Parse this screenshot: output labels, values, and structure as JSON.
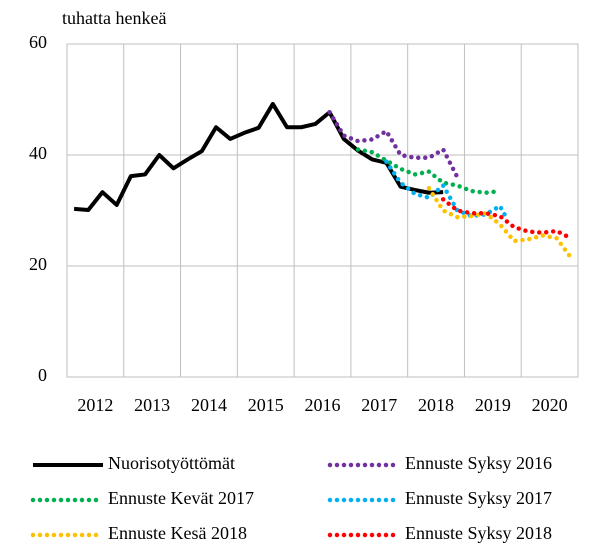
{
  "chart_data": {
    "type": "line",
    "y_label": "tuhatta henkeä",
    "xlim": [
      2012,
      2021
    ],
    "xticks": [
      2012,
      2013,
      2014,
      2015,
      2016,
      2017,
      2018,
      2019,
      2020
    ],
    "ylim": [
      0,
      60
    ],
    "yticks": [
      0,
      20,
      40,
      60
    ],
    "grid": true,
    "legend": "bottom",
    "series": [
      {
        "name": "Nuorisotyöttömät",
        "color": "#000000",
        "style": "solid",
        "x": [
          2012.125,
          2012.375,
          2012.625,
          2012.875,
          2013.125,
          2013.375,
          2013.625,
          2013.875,
          2014.125,
          2014.375,
          2014.625,
          2014.875,
          2015.125,
          2015.375,
          2015.625,
          2015.875,
          2016.125,
          2016.375,
          2016.625,
          2016.875,
          2017.125,
          2017.375,
          2017.625,
          2017.875,
          2018.125,
          2018.375,
          2018.625
        ],
        "values": [
          30.3,
          30.1,
          33.3,
          31.0,
          36.2,
          36.5,
          40.0,
          37.6,
          39.2,
          40.7,
          45.0,
          42.9,
          44.0,
          44.9,
          49.2,
          45.0,
          45.0,
          45.6,
          47.7,
          42.9,
          40.8,
          39.2,
          38.6,
          34.3,
          33.7,
          33.2,
          33.3
        ]
      },
      {
        "name": "Ennuste Syksy 2016",
        "color": "#7030a0",
        "style": "dotted",
        "x": [
          2016.625,
          2016.875,
          2017.125,
          2017.375,
          2017.625,
          2017.875,
          2018.125,
          2018.375,
          2018.625,
          2018.875
        ],
        "values": [
          47.7,
          43.5,
          42.5,
          42.8,
          44.3,
          40.0,
          39.5,
          39.5,
          41.0,
          36.0
        ]
      },
      {
        "name": "Ennuste Kevät 2017",
        "color": "#00b050",
        "style": "dotted",
        "x": [
          2017.125,
          2017.375,
          2017.625,
          2017.875,
          2018.125,
          2018.375,
          2018.625,
          2018.875,
          2019.125,
          2019.375,
          2019.625
        ],
        "values": [
          41.0,
          40.5,
          39.0,
          37.5,
          36.5,
          37.0,
          35.0,
          34.5,
          33.5,
          33.2,
          33.5
        ]
      },
      {
        "name": "Ennuste Syksy 2017",
        "color": "#00b0f0",
        "style": "dotted",
        "x": [
          2017.625,
          2017.875,
          2018.125,
          2018.375,
          2018.625,
          2018.875,
          2019.125,
          2019.375,
          2019.625,
          2019.75
        ],
        "values": [
          38.8,
          35.0,
          33.0,
          32.3,
          34.5,
          30.0,
          29.0,
          29.3,
          30.8,
          28.5
        ]
      },
      {
        "name": "Ennuste Kesä 2018",
        "color": "#ffc000",
        "style": "dotted",
        "x": [
          2018.375,
          2018.625,
          2018.875,
          2019.125,
          2019.375,
          2019.625,
          2019.875,
          2020.125,
          2020.375,
          2020.625,
          2020.875
        ],
        "values": [
          34.0,
          30.0,
          28.8,
          29.0,
          29.5,
          27.5,
          24.5,
          24.8,
          25.5,
          25.0,
          21.5
        ]
      },
      {
        "name": "Ennuste Syksy 2018",
        "color": "#ff0000",
        "style": "dotted",
        "x": [
          2018.625,
          2018.875,
          2019.125,
          2019.375,
          2019.625,
          2019.875,
          2020.125,
          2020.375,
          2020.625,
          2020.875
        ],
        "values": [
          32.0,
          30.0,
          29.5,
          29.5,
          29.0,
          27.0,
          26.2,
          26.0,
          26.3,
          25.0
        ]
      }
    ]
  }
}
